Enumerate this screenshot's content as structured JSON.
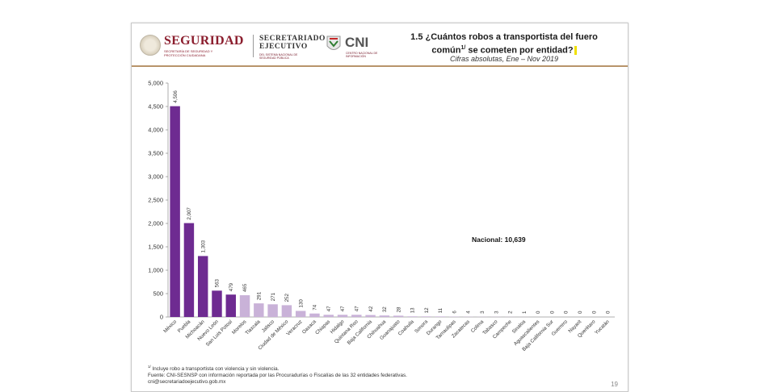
{
  "header": {
    "logo1_title": "SEGURIDAD",
    "logo1_sub": "SECRETARÍA DE SEGURIDAD Y PROTECCIÓN CIUDADANA",
    "logo2_title": "SECRETARIADO EJECUTIVO",
    "logo2_sub": "DEL SISTEMA NACIONAL DE SEGURIDAD PÚBLICA",
    "logo3_title": "CNI",
    "logo3_sub": "CENTRO NACIONAL DE INFORMACIÓN",
    "title_line1": "1.5 ¿Cuántos robos a transportista del fuero",
    "title_line2a": "común",
    "title_sup": "1/",
    "title_line2b": " se cometen por entidad?",
    "subtitle": "Cifras absolutas, Ene – Nov 2019"
  },
  "colors": {
    "dark_bar": "#6e2b91",
    "light_bar": "#c9b2d8",
    "rule": "#b8946a",
    "highlight": "#f0e000"
  },
  "chart_data": {
    "type": "bar",
    "categories": [
      "México",
      "Puebla",
      "Michoacán",
      "Nuevo León",
      "San Luis Potosí",
      "Morelos",
      "Tlaxcala",
      "Jalisco",
      "Ciudad de México",
      "Veracruz",
      "Oaxaca",
      "Chiapas",
      "Hidalgo",
      "Quintana Roo",
      "Baja California",
      "Chihuahua",
      "Guanajuato",
      "Coahuila",
      "Sonora",
      "Durango",
      "Tamaulipas",
      "Zacatecas",
      "Colima",
      "Tabasco",
      "Campeche",
      "Sinaloa",
      "Aguascalientes",
      "Baja California Sur",
      "Guerrero",
      "Nayarit",
      "Querétaro",
      "Yucatán"
    ],
    "values": [
      4506,
      2007,
      1303,
      563,
      479,
      465,
      291,
      271,
      252,
      130,
      74,
      47,
      47,
      47,
      42,
      32,
      28,
      13,
      12,
      11,
      6,
      4,
      3,
      3,
      2,
      1,
      0,
      0,
      0,
      0,
      0,
      0
    ],
    "value_labels": [
      "4,506",
      "2,007",
      "1,303",
      "563",
      "479",
      "465",
      "291",
      "271",
      "252",
      "130",
      "74",
      "47",
      "47",
      "47",
      "42",
      "32",
      "28",
      "13",
      "12",
      "11",
      "6",
      "4",
      "3",
      "3",
      "2",
      "1",
      "0",
      "0",
      "0",
      "0",
      "0",
      "0"
    ],
    "highlight_count": 5,
    "ylim": [
      0,
      5000
    ],
    "yticks": [
      0,
      500,
      1000,
      1500,
      2000,
      2500,
      3000,
      3500,
      4000,
      4500,
      5000
    ],
    "ytick_labels": [
      "0",
      "500",
      "1,000",
      "1,500",
      "2,000",
      "2,500",
      "3,000",
      "3,500",
      "4,000",
      "4,500",
      "5,000"
    ],
    "annotation": "Nacional: 10,639",
    "grid": false,
    "legend": "none"
  },
  "footnotes": {
    "note1_sup": "1/",
    "note1": " Incluye robo a transportista con violencia y sin violencia.",
    "source": "Fuente: CNI-SESNSP con información reportada por las Procuradurías o Fiscalías de las 32 entidades federativas.",
    "email": "cni@secretariadoejecutivo.gob.mx"
  },
  "page_number": "19"
}
